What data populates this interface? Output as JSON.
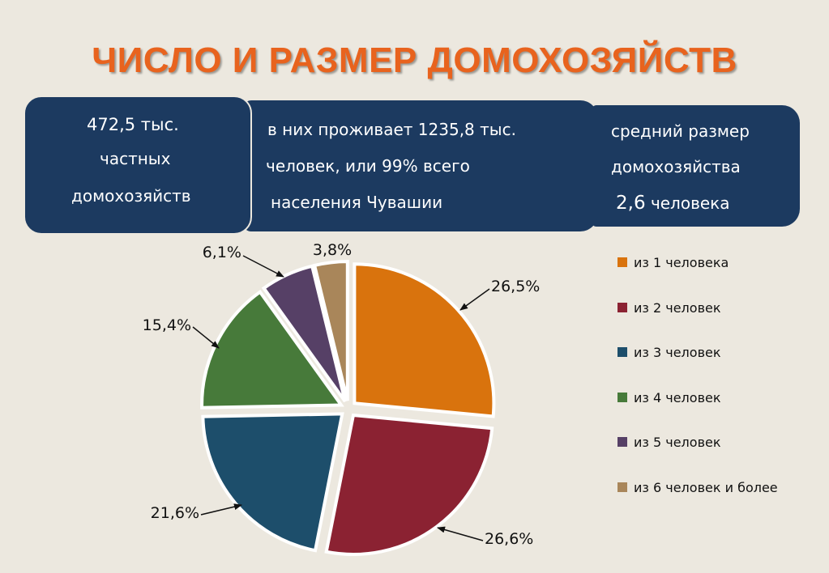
{
  "title": "ЧИСЛО И РАЗМЕР ДОМОХОЗЯЙСТВ",
  "box1": {
    "line1": "472,5 тыс.",
    "line2": "частных",
    "line3": "домохозяйств"
  },
  "box2": {
    "line1": "в них проживает 1235,8 тыс.",
    "line2": "человек, или 99%  всего",
    "line3": "населения Чувашии"
  },
  "box3": {
    "line1": "средний размер",
    "line2": "домохозяйства",
    "line3_num": "2,6",
    "line3_unit": "человека"
  },
  "colors": {
    "title": "#e8631e",
    "box": "#1c3a60"
  },
  "chart_data": {
    "type": "pie",
    "title": "",
    "slices": [
      {
        "label": "из 1 человека",
        "value": 26.5,
        "display": "26,5%",
        "color": "#d9730d"
      },
      {
        "label": "из 2 человек",
        "value": 26.6,
        "display": "26,6%",
        "color": "#8b2232"
      },
      {
        "label": "из 3 человек",
        "value": 21.6,
        "display": "21,6%",
        "color": "#1d4e6b"
      },
      {
        "label": "из 4 человек",
        "value": 15.4,
        "display": "15,4%",
        "color": "#477a3a"
      },
      {
        "label": "из 5 человек",
        "value": 6.1,
        "display": "6,1%",
        "color": "#564066"
      },
      {
        "label": "из 6 человек и более",
        "value": 3.8,
        "display": "3,8%",
        "color": "#a9865a"
      }
    ],
    "legend_position": "right"
  }
}
